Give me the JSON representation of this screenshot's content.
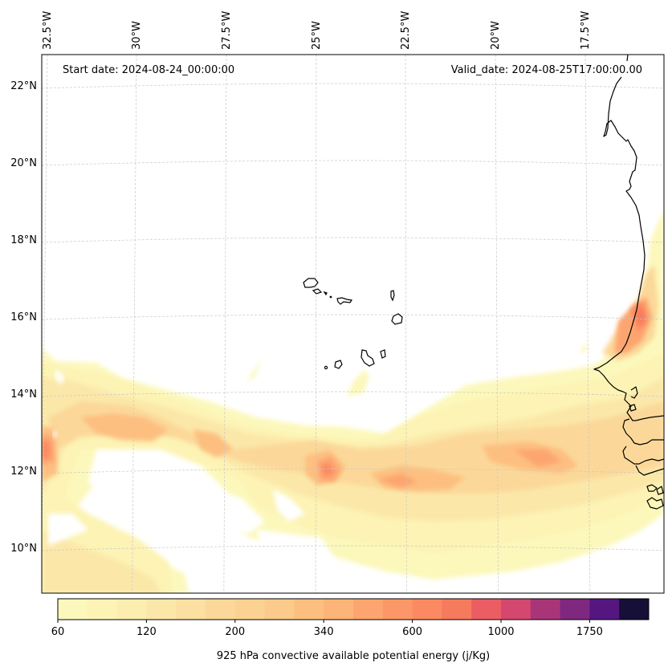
{
  "map": {
    "start_date_label": "Start date: 2024-08-24_00:00:00",
    "valid_date_label": "Valid_date: 2024-08-25T17:00:00.00",
    "lon_labels": [
      "32.5°W",
      "30°W",
      "27.5°W",
      "25°W",
      "22.5°W",
      "20°W",
      "17.5°W"
    ],
    "lon_values": [
      -32.5,
      -30,
      -27.5,
      -25,
      -22.5,
      -20,
      -17.5
    ],
    "lat_labels": [
      "22°N",
      "20°N",
      "18°N",
      "16°N",
      "14°N",
      "12°N",
      "10°N"
    ],
    "lat_values": [
      22,
      20,
      18,
      16,
      14,
      12,
      10
    ],
    "extent": {
      "lon_min": -32.5,
      "lon_max": -15.5,
      "lat_min": 9.0,
      "lat_max": 22.5
    },
    "variable": "925 hPa convective available potential energy",
    "regions_shown": [
      "Cape Verde islands",
      "West African coast (Senegal, Gambia, Guinea-Bissau)"
    ]
  },
  "colorbar": {
    "label": "925 hPa convective available potential energy (j/Kg)",
    "tick_labels": [
      "60",
      "120",
      "200",
      "340",
      "600",
      "1000",
      "1750"
    ],
    "tick_bin_indices": [
      0,
      3,
      6,
      9,
      12,
      15,
      18
    ],
    "bin_count": 20,
    "colors": [
      "#fcf8bb",
      "#fcf3b4",
      "#fbeeaf",
      "#fbe8a9",
      "#fbe0a1",
      "#fbd899",
      "#fcd292",
      "#fcca8a",
      "#fdbf80",
      "#fdb477",
      "#fda570",
      "#fc9867",
      "#fb8a62",
      "#f57a5e",
      "#eb5d63",
      "#d4476e",
      "#a93579",
      "#7f287f",
      "#551680",
      "#160f37"
    ]
  },
  "chart_data": {
    "type": "heatmap",
    "title": "",
    "xlabel": "",
    "ylabel": "",
    "x_tick_labels": [
      "32.5°W",
      "30°W",
      "27.5°W",
      "25°W",
      "22.5°W",
      "20°W",
      "17.5°W"
    ],
    "y_tick_labels": [
      "22°N",
      "20°N",
      "18°N",
      "16°N",
      "14°N",
      "12°N",
      "10°N"
    ],
    "annotations": [
      "Start date: 2024-08-24_00:00:00",
      "Valid_date: 2024-08-25T17:00:00.00"
    ],
    "colorbar_label": "925 hPa convective available potential energy (j/Kg)",
    "colorbar_ticks": [
      60,
      120,
      200,
      340,
      600,
      1000,
      1750
    ],
    "colorbar_position": "bottom",
    "grid": true,
    "features": [
      {
        "name": "main CAPE band",
        "lat_range": [
          10.5,
          13.5
        ],
        "lon_range": [
          -32.5,
          -15.5
        ],
        "approx_max": 600
      },
      {
        "name": "coastal maximum near Senegal",
        "lat_range": [
          15,
          17
        ],
        "lon_range": [
          -17,
          -15.5
        ],
        "approx_max": 850
      },
      {
        "name": "western edge maximum",
        "lat_range": [
          12.5,
          13.5
        ],
        "lon_range": [
          -32.5,
          -32
        ],
        "approx_max": 700
      }
    ]
  }
}
